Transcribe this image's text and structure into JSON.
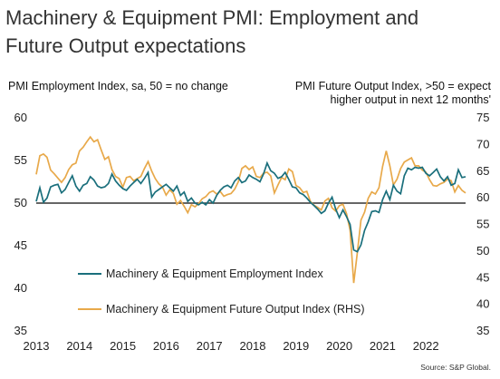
{
  "header": {
    "title_line1": "Machinery & Equipment PMI: Employment and",
    "title_line2": "Future Output expectations"
  },
  "source": "Source: S&P Global.",
  "colors": {
    "employment": "#1a6f7c",
    "future_output": "#e8a94a",
    "baseline": "#333333"
  },
  "chart_data": {
    "type": "line",
    "title": "Machinery & Equipment PMI: Employment and Future Output expectations",
    "ylabel_left": "PMI Employment Index, sa, 50 = no change",
    "ylabel_right_line1": "PMI Future Output Index, >50 = expect",
    "ylabel_right_line2": "higher output in next 12 months'",
    "ylim_left": [
      35,
      60
    ],
    "ylim_right": [
      35,
      75
    ],
    "yticks_left": [
      "60",
      "55",
      "50",
      "45",
      "40",
      "35"
    ],
    "yticks_right": [
      "75",
      "70",
      "65",
      "60",
      "55",
      "50",
      "45",
      "40",
      "35"
    ],
    "xticks": [
      "2013",
      "2014",
      "2015",
      "2016",
      "2017",
      "2018",
      "2019",
      "2020",
      "2021",
      "2022"
    ],
    "reference_line_left": 50,
    "legend_position": "bottom-left",
    "grid": false,
    "x_start": "2013-01",
    "x_end": "2022-06",
    "series": [
      {
        "name": "Machinery & Equipment Employment Index",
        "axis": "left",
        "values": [
          50.2,
          51.8,
          50.1,
          50.6,
          51.9,
          52.1,
          52.2,
          51.2,
          51.6,
          52.4,
          53.2,
          52.0,
          51.4,
          52.1,
          52.3,
          53.1,
          52.7,
          52.0,
          51.8,
          51.9,
          52.3,
          53.4,
          52.6,
          52.1,
          51.7,
          51.5,
          52.0,
          52.4,
          52.8,
          52.3,
          52.9,
          53.6,
          50.7,
          51.3,
          51.6,
          51.9,
          52.2,
          51.8,
          51.4,
          52.0,
          50.9,
          51.3,
          50.2,
          50.6,
          50.0,
          49.8,
          50.1,
          49.8,
          50.4,
          50.0,
          50.9,
          51.5,
          51.9,
          52.1,
          51.8,
          52.6,
          53.0,
          52.4,
          52.6,
          53.3,
          53.0,
          52.8,
          52.5,
          53.4,
          54.7,
          53.8,
          53.5,
          52.9,
          53.1,
          53.6,
          52.8,
          51.9,
          51.8,
          51.2,
          51.0,
          50.6,
          50.1,
          49.7,
          49.3,
          48.8,
          49.1,
          50.0,
          50.7,
          49.3,
          48.3,
          49.2,
          48.4,
          47.5,
          44.5,
          44.3,
          45.1,
          46.8,
          47.8,
          49.0,
          49.1,
          48.9,
          50.4,
          51.4,
          50.4,
          52.1,
          51.4,
          51.1,
          53.2,
          54.1,
          53.9,
          54.2,
          54.1,
          54.2,
          53.5,
          53.2,
          53.6,
          54.0,
          53.1,
          52.6,
          53.1,
          52.1,
          52.3,
          53.9,
          53.0,
          53.1
        ]
      },
      {
        "name": "Machinery & Equipment Future Output Index (RHS)",
        "axis": "right",
        "values": [
          64.4,
          67.9,
          68.2,
          67.6,
          65.2,
          64.5,
          63.7,
          62.9,
          63.8,
          65.3,
          66.2,
          66.5,
          68.8,
          69.5,
          70.5,
          71.4,
          70.5,
          70.9,
          69.0,
          67.2,
          67.7,
          65.3,
          64.0,
          63.6,
          62.0,
          63.8,
          64.0,
          63.2,
          63.6,
          64.0,
          65.5,
          66.8,
          65.0,
          63.6,
          62.6,
          62.0,
          60.5,
          61.5,
          60.8,
          58.8,
          59.5,
          58.4,
          57.2,
          58.7,
          58.3,
          58.9,
          59.8,
          60.2,
          61.0,
          61.3,
          60.7,
          61.2,
          60.3,
          60.6,
          60.8,
          61.6,
          63.0,
          65.5,
          66.0,
          65.3,
          65.8,
          64.0,
          63.8,
          64.6,
          64.8,
          64.1,
          60.9,
          62.4,
          63.8,
          63.4,
          65.4,
          64.9,
          62.3,
          61.9,
          61.0,
          61.2,
          59.3,
          58.6,
          58.2,
          57.7,
          59.4,
          59.9,
          58.1,
          57.5,
          58.5,
          58.8,
          57.0,
          53.9,
          44.0,
          49.7,
          55.8,
          57.3,
          59.9,
          61.1,
          60.7,
          61.9,
          65.9,
          68.8,
          66.0,
          62.4,
          63.5,
          65.5,
          66.7,
          67.1,
          67.5,
          66.0,
          66.0,
          65.2,
          64.8,
          63.4,
          62.3,
          62.2,
          62.6,
          62.9,
          63.5,
          63.2,
          61.1,
          62.3,
          61.4,
          60.9
        ]
      }
    ]
  },
  "legend": {
    "item1": "Machinery & Equipment Employment Index",
    "item2": "Machinery & Equipment Future Output Index (RHS)"
  }
}
